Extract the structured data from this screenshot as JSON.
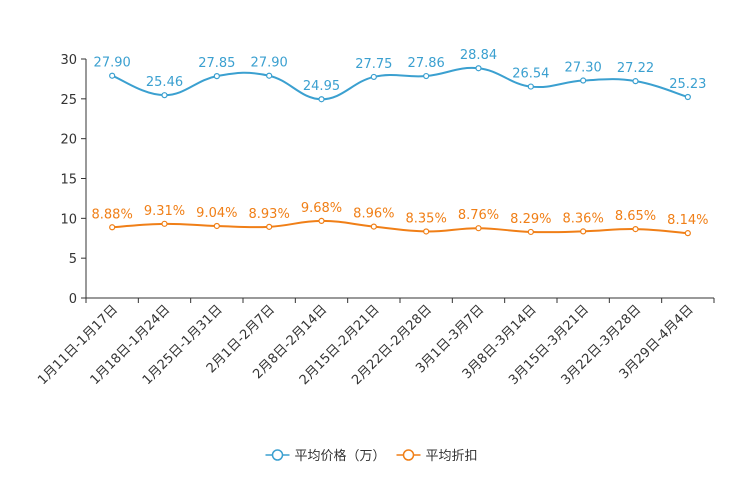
{
  "chart_data": {
    "type": "line",
    "title": "",
    "xlabel": "",
    "ylabel": "",
    "ylim": [
      0,
      30
    ],
    "yticks": [
      0,
      5,
      10,
      15,
      20,
      25,
      30
    ],
    "grid": false,
    "categories": [
      "1月11日-1月17日",
      "1月18日-1月24日",
      "1月25日-1月31日",
      "2月1日-2月7日",
      "2月8日-2月14日",
      "2月15日-2月21日",
      "2月22日-2月28日",
      "3月1日-3月7日",
      "3月8日-3月14日",
      "3月15日-3月21日",
      "3月22日-3月28日",
      "3月29日-4月4日"
    ],
    "series": [
      {
        "name": "平均价格（万）",
        "color": "#3ba0d0",
        "values": [
          27.9,
          25.46,
          27.85,
          27.9,
          24.95,
          27.75,
          27.86,
          28.84,
          26.54,
          27.3,
          27.22,
          25.23
        ],
        "labels": [
          "27.90",
          "25.46",
          "27.85",
          "27.90",
          "24.95",
          "27.75",
          "27.86",
          "28.84",
          "26.54",
          "27.30",
          "27.22",
          "25.23"
        ]
      },
      {
        "name": "平均折扣",
        "color": "#f07f17",
        "values": [
          8.88,
          9.31,
          9.04,
          8.93,
          9.68,
          8.96,
          8.35,
          8.76,
          8.29,
          8.36,
          8.65,
          8.14
        ],
        "labels": [
          "8.88%",
          "9.31%",
          "9.04%",
          "8.93%",
          "9.68%",
          "8.96%",
          "8.35%",
          "8.76%",
          "8.29%",
          "8.36%",
          "8.65%",
          "8.14%"
        ]
      }
    ],
    "legend_position": "bottom-center"
  }
}
